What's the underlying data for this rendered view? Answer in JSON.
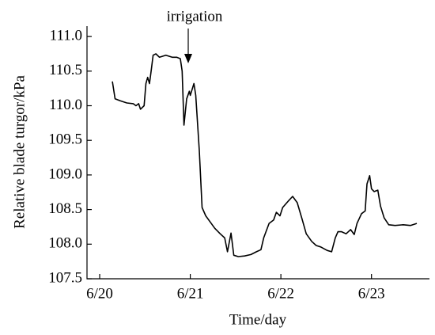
{
  "chart_data": {
    "type": "line",
    "annotation": "irrigation",
    "xlabel": "Time/day",
    "ylabel": "Relative blade turgor/kPa",
    "xlim": [
      -0.14,
      3.64
    ],
    "ylim": [
      107.5,
      111.15
    ],
    "xticks": [
      {
        "value": 0,
        "label": "6/20"
      },
      {
        "value": 1,
        "label": "6/21"
      },
      {
        "value": 2,
        "label": "6/22"
      },
      {
        "value": 3,
        "label": "6/23"
      }
    ],
    "yticks": [
      107.5,
      {
        "value": 108,
        "label": "108.0"
      },
      108.5,
      {
        "value": 109,
        "label": "109.0"
      },
      109.5,
      {
        "value": 110,
        "label": "110.0"
      },
      110.5,
      {
        "value": 111,
        "label": "111.0"
      }
    ],
    "series": [
      {
        "color": "#000000",
        "x": [
          0.14,
          0.17,
          0.23,
          0.3,
          0.37,
          0.4,
          0.43,
          0.45,
          0.49,
          0.51,
          0.53,
          0.55,
          0.57,
          0.59,
          0.62,
          0.66,
          0.73,
          0.8,
          0.85,
          0.89,
          0.91,
          0.93,
          0.96,
          0.99,
          1.0,
          1.04,
          1.06,
          1.1,
          1.13,
          1.17,
          1.22,
          1.27,
          1.33,
          1.38,
          1.41,
          1.45,
          1.48,
          1.53,
          1.6,
          1.67,
          1.73,
          1.78,
          1.81,
          1.87,
          1.92,
          1.95,
          1.99,
          2.02,
          2.08,
          2.13,
          2.18,
          2.23,
          2.28,
          2.34,
          2.39,
          2.44,
          2.51,
          2.56,
          2.6,
          2.63,
          2.67,
          2.72,
          2.77,
          2.81,
          2.84,
          2.89,
          2.93,
          2.95,
          2.98,
          3.0,
          3.03,
          3.07,
          3.1,
          3.14,
          3.19,
          3.26,
          3.35,
          3.43,
          3.5
        ],
        "values": [
          110.35,
          110.1,
          110.07,
          110.04,
          110.03,
          110.0,
          110.03,
          109.95,
          110.0,
          110.32,
          110.41,
          110.32,
          110.52,
          110.73,
          110.75,
          110.7,
          110.73,
          110.7,
          110.7,
          110.68,
          110.5,
          109.72,
          110.1,
          110.21,
          110.15,
          110.32,
          110.15,
          109.35,
          108.53,
          108.41,
          108.32,
          108.23,
          108.15,
          108.09,
          107.89,
          108.16,
          107.84,
          107.82,
          107.83,
          107.85,
          107.89,
          107.92,
          108.09,
          108.3,
          108.35,
          108.46,
          108.41,
          108.53,
          108.62,
          108.69,
          108.6,
          108.38,
          108.15,
          108.04,
          107.98,
          107.96,
          107.91,
          107.89,
          108.09,
          108.18,
          108.18,
          108.15,
          108.21,
          108.14,
          108.3,
          108.44,
          108.48,
          108.87,
          108.99,
          108.8,
          108.76,
          108.78,
          108.55,
          108.38,
          108.28,
          108.27,
          108.28,
          108.27,
          108.3
        ]
      }
    ]
  }
}
